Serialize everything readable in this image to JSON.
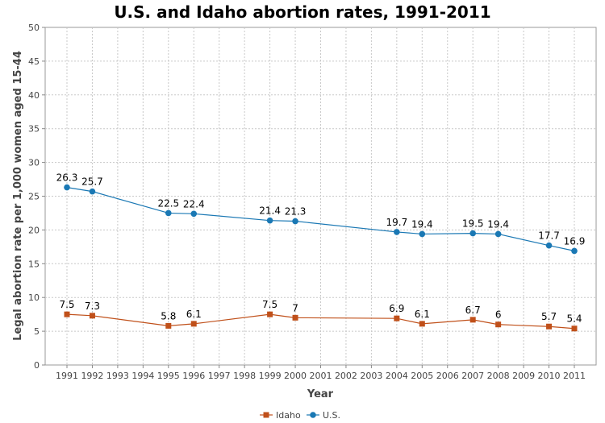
{
  "chart_data": {
    "type": "line",
    "title": "U.S. and Idaho abortion rates, 1991-2011",
    "xlabel": "Year",
    "ylabel": "Legal abortion rate per 1,000 women aged 15-44",
    "ylim": [
      0,
      50
    ],
    "yticks": [
      0,
      5,
      10,
      15,
      20,
      25,
      30,
      35,
      40,
      45,
      50
    ],
    "x_categories": [
      "1991",
      "1992",
      "1993",
      "1994",
      "1995",
      "1996",
      "1997",
      "1998",
      "1999",
      "2000",
      "2001",
      "2002",
      "2003",
      "2004",
      "2005",
      "2006",
      "2007",
      "2008",
      "2009",
      "2010",
      "2011"
    ],
    "grid": true,
    "legend_position": "bottom",
    "series": [
      {
        "name": "Idaho",
        "color": "#c0501a",
        "marker": "square",
        "points": [
          {
            "x": "1991",
            "y": 7.5,
            "label": "7.5"
          },
          {
            "x": "1992",
            "y": 7.3,
            "label": "7.3"
          },
          {
            "x": "1995",
            "y": 5.8,
            "label": "5.8"
          },
          {
            "x": "1996",
            "y": 6.1,
            "label": "6.1"
          },
          {
            "x": "1999",
            "y": 7.5,
            "label": "7.5"
          },
          {
            "x": "2000",
            "y": 7.0,
            "label": "7"
          },
          {
            "x": "2004",
            "y": 6.9,
            "label": "6.9"
          },
          {
            "x": "2005",
            "y": 6.1,
            "label": "6.1"
          },
          {
            "x": "2007",
            "y": 6.7,
            "label": "6.7"
          },
          {
            "x": "2008",
            "y": 6.0,
            "label": "6"
          },
          {
            "x": "2010",
            "y": 5.7,
            "label": "5.7"
          },
          {
            "x": "2011",
            "y": 5.4,
            "label": "5.4"
          }
        ]
      },
      {
        "name": "U.S.",
        "color": "#1a78b4",
        "marker": "circle",
        "points": [
          {
            "x": "1991",
            "y": 26.3,
            "label": "26.3"
          },
          {
            "x": "1992",
            "y": 25.7,
            "label": "25.7"
          },
          {
            "x": "1995",
            "y": 22.5,
            "label": "22.5"
          },
          {
            "x": "1996",
            "y": 22.4,
            "label": "22.4"
          },
          {
            "x": "1999",
            "y": 21.4,
            "label": "21.4"
          },
          {
            "x": "2000",
            "y": 21.3,
            "label": "21.3"
          },
          {
            "x": "2004",
            "y": 19.7,
            "label": "19.7"
          },
          {
            "x": "2005",
            "y": 19.4,
            "label": "19.4"
          },
          {
            "x": "2007",
            "y": 19.5,
            "label": "19.5"
          },
          {
            "x": "2008",
            "y": 19.4,
            "label": "19.4"
          },
          {
            "x": "2010",
            "y": 17.7,
            "label": "17.7"
          },
          {
            "x": "2011",
            "y": 16.9,
            "label": "16.9"
          }
        ]
      }
    ]
  }
}
